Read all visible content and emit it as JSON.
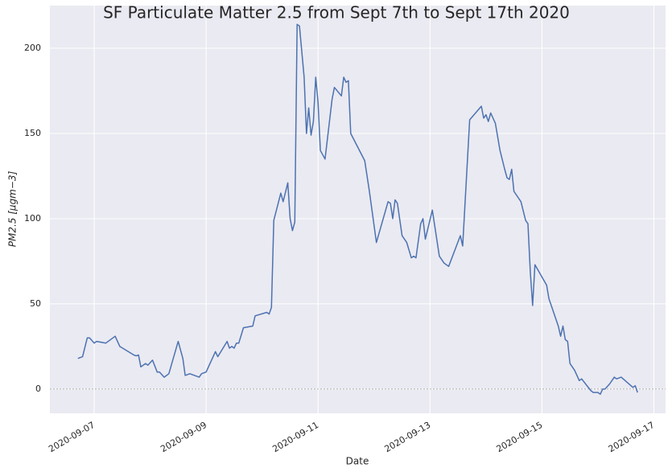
{
  "chart_data": {
    "type": "line",
    "title": "SF Particulate Matter 2.5 from Sept 7th to Sept 17th 2020",
    "x_label": "Date",
    "y_label": "PM2.5 [μgm−3]",
    "x": [
      "2020-09-06T17:00",
      "2020-09-06T19:00",
      "2020-09-06T21:00",
      "2020-09-06T22:00",
      "2020-09-07T00:00",
      "2020-09-07T01:00",
      "2020-09-07T05:00",
      "2020-09-07T09:00",
      "2020-09-07T11:00",
      "2020-09-07T17:00",
      "2020-09-07T18:00",
      "2020-09-07T19:00",
      "2020-09-07T20:00",
      "2020-09-07T22:00",
      "2020-09-07T23:00",
      "2020-09-08T01:00",
      "2020-09-08T03:00",
      "2020-09-08T04:00",
      "2020-09-08T06:00",
      "2020-09-08T08:00",
      "2020-09-08T12:00",
      "2020-09-08T14:00",
      "2020-09-08T15:00",
      "2020-09-08T17:00",
      "2020-09-08T21:00",
      "2020-09-08T22:00",
      "2020-09-09T00:00",
      "2020-09-09T04:00",
      "2020-09-09T05:00",
      "2020-09-09T09:00",
      "2020-09-09T10:00",
      "2020-09-09T11:00",
      "2020-09-09T12:00",
      "2020-09-09T13:00",
      "2020-09-09T14:00",
      "2020-09-09T16:00",
      "2020-09-09T20:00",
      "2020-09-09T21:00",
      "2020-09-10T02:00",
      "2020-09-10T03:00",
      "2020-09-10T04:00",
      "2020-09-10T05:00",
      "2020-09-10T08:00",
      "2020-09-10T09:00",
      "2020-09-10T11:00",
      "2020-09-10T12:00",
      "2020-09-10T13:00",
      "2020-09-10T14:00",
      "2020-09-10T15:00",
      "2020-09-10T16:00",
      "2020-09-10T18:00",
      "2020-09-10T19:00",
      "2020-09-10T20:00",
      "2020-09-10T21:00",
      "2020-09-10T22:00",
      "2020-09-10T23:00",
      "2020-09-11T00:00",
      "2020-09-11T01:00",
      "2020-09-11T03:00",
      "2020-09-11T06:00",
      "2020-09-11T07:00",
      "2020-09-11T10:00",
      "2020-09-11T11:00",
      "2020-09-11T12:00",
      "2020-09-11T13:00",
      "2020-09-11T14:00",
      "2020-09-11T20:00",
      "2020-09-11T22:00",
      "2020-09-12T01:00",
      "2020-09-12T06:00",
      "2020-09-12T07:00",
      "2020-09-12T08:00",
      "2020-09-12T09:00",
      "2020-09-12T10:00",
      "2020-09-12T12:00",
      "2020-09-12T14:00",
      "2020-09-12T16:00",
      "2020-09-12T17:00",
      "2020-09-12T18:00",
      "2020-09-12T20:00",
      "2020-09-12T21:00",
      "2020-09-12T22:00",
      "2020-09-13T01:00",
      "2020-09-13T04:00",
      "2020-09-13T06:00",
      "2020-09-13T08:00",
      "2020-09-13T13:00",
      "2020-09-13T14:00",
      "2020-09-13T17:00",
      "2020-09-13T22:00",
      "2020-09-13T23:00",
      "2020-09-14T00:00",
      "2020-09-14T01:00",
      "2020-09-14T02:00",
      "2020-09-14T04:00",
      "2020-09-14T06:00",
      "2020-09-14T08:00",
      "2020-09-14T09:00",
      "2020-09-14T10:00",
      "2020-09-14T11:00",
      "2020-09-14T12:00",
      "2020-09-14T15:00",
      "2020-09-14T17:00",
      "2020-09-14T18:00",
      "2020-09-14T19:00",
      "2020-09-14T20:00",
      "2020-09-14T21:00",
      "2020-09-15T02:00",
      "2020-09-15T03:00",
      "2020-09-15T04:00",
      "2020-09-15T07:00",
      "2020-09-15T08:00",
      "2020-09-15T09:00",
      "2020-09-15T10:00",
      "2020-09-15T11:00",
      "2020-09-15T12:00",
      "2020-09-15T14:00",
      "2020-09-15T16:00",
      "2020-09-15T17:00",
      "2020-09-15T21:00",
      "2020-09-15T22:00",
      "2020-09-16T00:00",
      "2020-09-16T01:00",
      "2020-09-16T02:00",
      "2020-09-16T03:00",
      "2020-09-16T05:00",
      "2020-09-16T07:00",
      "2020-09-16T08:00",
      "2020-09-16T10:00",
      "2020-09-16T15:00",
      "2020-09-16T16:00",
      "2020-09-16T17:00"
    ],
    "series": [
      {
        "color": "#4c72b0",
        "values": [
          18,
          19,
          30,
          30,
          27,
          28,
          27,
          31,
          25,
          20,
          19.5,
          20,
          13,
          15,
          14,
          17,
          10,
          10,
          7,
          9,
          28,
          18,
          8,
          9,
          7,
          9,
          10,
          22,
          19,
          28,
          24,
          25,
          24,
          27,
          27,
          36,
          37,
          43,
          45,
          44,
          48,
          99,
          115,
          110,
          121,
          100,
          93,
          98,
          214,
          213,
          183,
          150,
          165,
          149,
          157,
          183,
          168,
          140,
          135,
          170,
          177,
          172,
          183,
          180,
          181,
          150,
          134,
          116,
          86,
          110,
          109,
          100,
          111,
          109,
          90,
          86,
          77,
          78,
          77,
          97,
          100,
          88,
          105,
          78,
          74,
          72,
          90,
          84,
          158,
          166,
          159,
          161,
          157,
          162,
          156,
          140,
          129,
          124,
          123,
          129,
          116,
          110,
          99,
          97,
          69,
          49,
          73,
          61,
          53,
          49,
          37,
          31,
          37,
          29,
          28,
          15,
          11,
          5,
          6,
          -1,
          -2,
          -2,
          -3,
          0,
          0,
          3,
          7,
          6,
          7,
          1,
          2,
          -2
        ]
      }
    ],
    "xlim": [
      "2020-09-06T05:00",
      "2020-09-17T05:00"
    ],
    "xticks": [
      "2020-09-07",
      "2020-09-09",
      "2020-09-11",
      "2020-09-13",
      "2020-09-15",
      "2020-09-17"
    ],
    "ylim": [
      -14.2,
      225
    ],
    "yticks": [
      0,
      50,
      100,
      150,
      200
    ],
    "reference_line": 0,
    "grid": true
  }
}
